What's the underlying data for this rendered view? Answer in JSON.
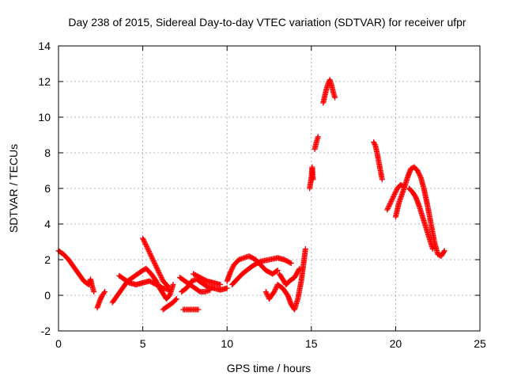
{
  "chart_data": {
    "type": "scatter",
    "title": "Day 238 of 2015, Sidereal Day-to-day VTEC variation (SDTVAR) for receiver ufpr",
    "xlabel": "GPS time / hours",
    "ylabel": "SDTVAR / TECUs",
    "xlim": [
      0,
      25
    ],
    "ylim": [
      -2,
      14
    ],
    "xticks": [
      "0",
      "5",
      "10",
      "15",
      "20",
      "25"
    ],
    "yticks": [
      "-2",
      "0",
      "2",
      "4",
      "6",
      "8",
      "10",
      "12",
      "14"
    ],
    "grid": true,
    "marker": "plus",
    "color": "#ff0000",
    "segments": [
      [
        [
          0.0,
          2.5
        ],
        [
          0.3,
          2.3
        ],
        [
          0.6,
          2.0
        ],
        [
          0.9,
          1.6
        ],
        [
          1.2,
          1.2
        ],
        [
          1.5,
          0.8
        ],
        [
          1.8,
          0.6
        ],
        [
          1.9,
          0.9
        ],
        [
          2.0,
          0.5
        ],
        [
          2.1,
          0.2
        ]
      ],
      [
        [
          2.3,
          -0.7
        ],
        [
          2.45,
          -0.3
        ],
        [
          2.6,
          0.0
        ],
        [
          2.75,
          0.2
        ]
      ],
      [
        [
          3.2,
          -0.4
        ],
        [
          3.5,
          0.0
        ],
        [
          3.8,
          0.4
        ],
        [
          4.1,
          0.8
        ],
        [
          4.4,
          1.0
        ],
        [
          4.7,
          1.2
        ],
        [
          5.0,
          1.4
        ],
        [
          5.2,
          1.5
        ],
        [
          5.5,
          1.2
        ],
        [
          5.8,
          0.8
        ],
        [
          6.0,
          0.4
        ],
        [
          6.2,
          0.1
        ],
        [
          6.4,
          -0.2
        ],
        [
          6.6,
          0.0
        ],
        [
          6.8,
          0.6
        ]
      ],
      [
        [
          3.6,
          1.1
        ],
        [
          3.9,
          0.9
        ],
        [
          4.2,
          0.7
        ],
        [
          4.6,
          0.6
        ],
        [
          5.0,
          0.7
        ],
        [
          5.4,
          0.8
        ],
        [
          5.8,
          0.6
        ],
        [
          6.2,
          0.4
        ],
        [
          6.6,
          0.3
        ]
      ],
      [
        [
          5.0,
          3.2
        ],
        [
          5.2,
          2.8
        ],
        [
          5.4,
          2.4
        ],
        [
          5.6,
          2.0
        ],
        [
          5.8,
          1.6
        ],
        [
          6.0,
          1.2
        ],
        [
          6.2,
          0.8
        ],
        [
          6.5,
          0.5
        ]
      ],
      [
        [
          6.2,
          -0.8
        ],
        [
          6.5,
          -0.6
        ],
        [
          6.8,
          -0.4
        ],
        [
          7.0,
          -0.2
        ]
      ],
      [
        [
          7.2,
          1.0
        ],
        [
          7.5,
          0.8
        ],
        [
          7.8,
          0.6
        ],
        [
          8.1,
          0.4
        ],
        [
          8.4,
          0.2
        ],
        [
          8.7,
          0.2
        ],
        [
          9.0,
          0.3
        ]
      ],
      [
        [
          7.3,
          0.2
        ],
        [
          7.6,
          0.4
        ],
        [
          7.9,
          0.8
        ],
        [
          8.2,
          0.9
        ],
        [
          8.5,
          0.7
        ],
        [
          8.8,
          0.5
        ],
        [
          9.2,
          0.4
        ],
        [
          9.6,
          0.3
        ],
        [
          10.0,
          0.4
        ]
      ],
      [
        [
          7.4,
          -0.8
        ],
        [
          7.7,
          -0.8
        ],
        [
          8.0,
          -0.8
        ],
        [
          8.3,
          -0.8
        ]
      ],
      [
        [
          8.0,
          1.2
        ],
        [
          8.4,
          1.0
        ],
        [
          8.8,
          0.8
        ],
        [
          9.2,
          0.7
        ],
        [
          9.6,
          0.6
        ]
      ],
      [
        [
          10.0,
          0.8
        ],
        [
          10.2,
          1.3
        ],
        [
          10.4,
          1.7
        ],
        [
          10.7,
          2.0
        ],
        [
          11.0,
          2.1
        ],
        [
          11.3,
          2.2
        ],
        [
          11.7,
          2.0
        ],
        [
          12.0,
          1.7
        ],
        [
          12.3,
          1.4
        ],
        [
          12.7,
          1.2
        ],
        [
          13.0,
          1.4
        ]
      ],
      [
        [
          10.3,
          0.6
        ],
        [
          10.6,
          0.9
        ],
        [
          10.9,
          1.2
        ],
        [
          11.3,
          1.5
        ],
        [
          11.6,
          1.7
        ],
        [
          12.0,
          1.9
        ],
        [
          12.5,
          2.0
        ],
        [
          13.0,
          2.1
        ],
        [
          13.4,
          2.0
        ],
        [
          13.8,
          1.8
        ]
      ],
      [
        [
          12.3,
          0.2
        ],
        [
          12.5,
          -0.2
        ],
        [
          12.8,
          0.2
        ],
        [
          13.0,
          0.6
        ],
        [
          13.3,
          0.4
        ],
        [
          13.6,
          0.0
        ],
        [
          13.8,
          -0.5
        ],
        [
          14.0,
          -0.8
        ],
        [
          14.2,
          -0.2
        ],
        [
          14.4,
          0.8
        ],
        [
          14.6,
          2.2
        ],
        [
          14.65,
          2.6
        ]
      ],
      [
        [
          13.1,
          1.2
        ],
        [
          13.3,
          0.9
        ],
        [
          13.5,
          0.6
        ],
        [
          13.7,
          0.8
        ],
        [
          14.0,
          1.0
        ],
        [
          14.3,
          1.5
        ]
      ],
      [
        [
          14.9,
          6.0
        ],
        [
          15.0,
          6.6
        ],
        [
          15.05,
          7.2
        ],
        [
          15.1,
          6.5
        ]
      ],
      [
        [
          15.2,
          8.2
        ],
        [
          15.3,
          8.6
        ],
        [
          15.4,
          8.9
        ]
      ],
      [
        [
          15.7,
          10.8
        ],
        [
          15.8,
          11.2
        ],
        [
          15.9,
          11.6
        ],
        [
          16.0,
          11.9
        ],
        [
          16.1,
          12.1
        ],
        [
          16.2,
          11.8
        ],
        [
          16.3,
          11.4
        ],
        [
          16.4,
          11.1
        ]
      ],
      [
        [
          18.7,
          8.6
        ],
        [
          18.8,
          8.4
        ],
        [
          18.9,
          8.0
        ],
        [
          19.0,
          7.5
        ],
        [
          19.1,
          7.0
        ],
        [
          19.2,
          6.5
        ]
      ],
      [
        [
          19.5,
          4.8
        ],
        [
          19.7,
          5.2
        ],
        [
          19.9,
          5.6
        ],
        [
          20.1,
          6.0
        ],
        [
          20.3,
          6.2
        ],
        [
          20.5,
          6.1
        ]
      ],
      [
        [
          20.0,
          4.4
        ],
        [
          20.2,
          5.2
        ],
        [
          20.5,
          6.0
        ],
        [
          20.7,
          6.6
        ],
        [
          20.9,
          7.1
        ],
        [
          21.1,
          7.2
        ],
        [
          21.3,
          7.0
        ],
        [
          21.5,
          6.6
        ],
        [
          21.7,
          5.9
        ],
        [
          21.9,
          5.0
        ],
        [
          22.1,
          4.0
        ],
        [
          22.3,
          3.0
        ],
        [
          22.5,
          2.3
        ],
        [
          22.7,
          2.2
        ],
        [
          22.9,
          2.5
        ]
      ],
      [
        [
          20.8,
          6.0
        ],
        [
          21.0,
          5.8
        ],
        [
          21.2,
          5.5
        ],
        [
          21.4,
          5.0
        ],
        [
          21.6,
          4.4
        ],
        [
          21.8,
          3.8
        ],
        [
          22.0,
          3.2
        ],
        [
          22.2,
          2.6
        ]
      ]
    ]
  }
}
